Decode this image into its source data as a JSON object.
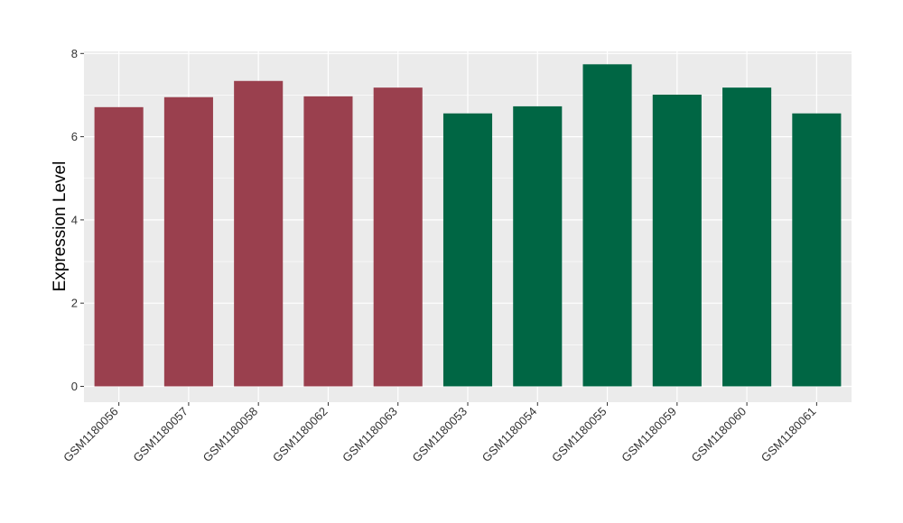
{
  "chart_data": {
    "type": "bar",
    "title": "",
    "xlabel": "",
    "ylabel": "Expression Level",
    "ylim": [
      -0.38,
      8.05
    ],
    "yticks": [
      0,
      2,
      4,
      6,
      8
    ],
    "grid": true,
    "legend": "none",
    "panel_color": "#EBEBEB",
    "grid_color": "#FFFFFF",
    "categories": [
      "GSM1180056",
      "GSM1180057",
      "GSM1180058",
      "GSM1180062",
      "GSM1180063",
      "GSM1180053",
      "GSM1180054",
      "GSM1180055",
      "GSM1180059",
      "GSM1180060",
      "GSM1180061"
    ],
    "values": [
      6.71,
      6.95,
      7.34,
      6.97,
      7.18,
      6.56,
      6.73,
      7.74,
      7.01,
      7.18,
      6.56
    ],
    "bar_colors": [
      "#9A404E",
      "#9A404E",
      "#9A404E",
      "#9A404E",
      "#9A404E",
      "#006644",
      "#006644",
      "#006644",
      "#006644",
      "#006644",
      "#006644"
    ]
  }
}
